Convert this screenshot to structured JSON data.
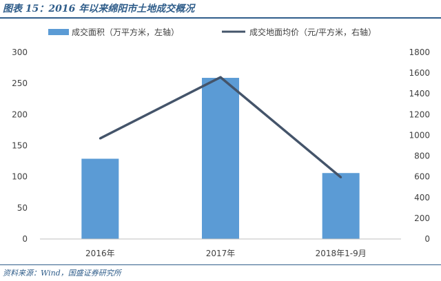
{
  "header": {
    "title": "图表 15：2016 年以来绵阳市土地成交概况"
  },
  "source": {
    "text": "资料来源：Wind，国盛证券研究所"
  },
  "colors": {
    "bar": "#5b9bd5",
    "line": "#44546a",
    "accent": "#2f5d8a"
  },
  "chart_data": {
    "type": "bar+line",
    "categories": [
      "2016年",
      "2017年",
      "2018年1-9月"
    ],
    "series": [
      {
        "name": "成交面积（万平方米，左轴）",
        "type": "bar",
        "axis": "left",
        "values": [
          129,
          259,
          106
        ]
      },
      {
        "name": "成交地面均价（元/平方米，右轴）",
        "type": "line",
        "axis": "right",
        "values": [
          970,
          1560,
          595
        ]
      }
    ],
    "y_left": {
      "min": 0,
      "max": 300,
      "ticks": [
        "0",
        "50",
        "100",
        "150",
        "200",
        "250",
        "300"
      ]
    },
    "y_right": {
      "min": 0,
      "max": 1800,
      "ticks": [
        "0",
        "200",
        "400",
        "600",
        "800",
        "1000",
        "1200",
        "1400",
        "1600",
        "1800"
      ]
    },
    "grid": false,
    "legend": "top"
  }
}
